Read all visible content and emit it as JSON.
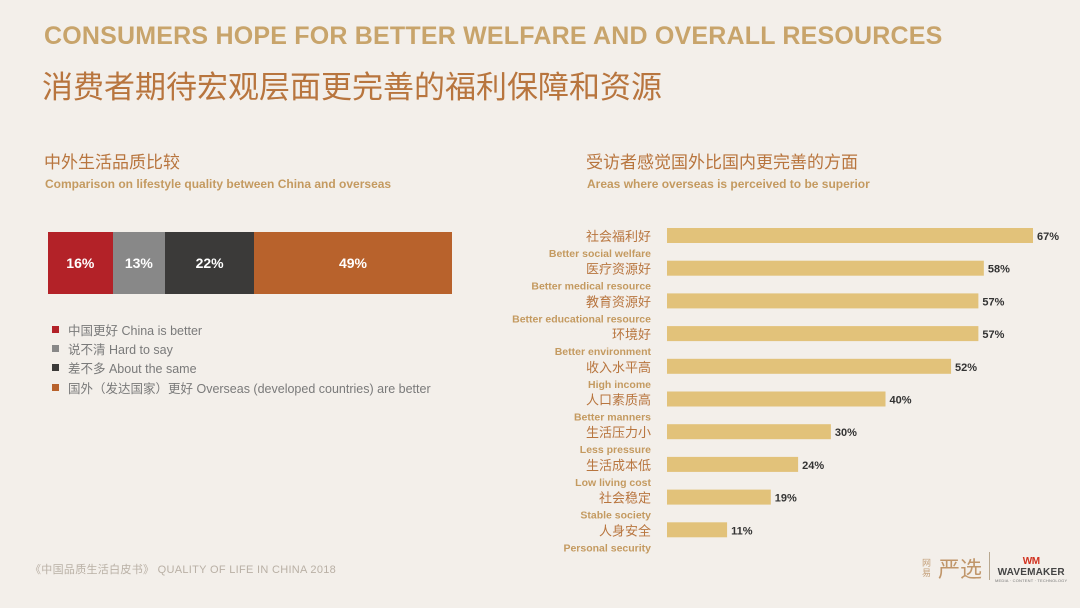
{
  "title_en": "CONSUMERS HOPE FOR BETTER WELFARE AND OVERALL RESOURCES",
  "title_cn": "消费者期待宏观层面更完善的福利保障和资源",
  "left_section": {
    "title_cn": "中外生活品质比较",
    "title_en": "Comparison on lifestyle quality between China and overseas"
  },
  "right_section": {
    "title_cn": "受访者感觉国外比国内更完善的方面",
    "title_en": "Areas where overseas is perceived to be superior"
  },
  "footer": {
    "report": "《中国品质生活白皮书》  QUALITY OF LIFE IN CHINA 2018",
    "logo_small": "网易",
    "logo_big": "严选",
    "wm_mark": "WM",
    "wm_name": "WAVEMAKER",
    "wm_sub": "MEDIA · CONTENT · TECHNOLOGY"
  },
  "chart_data": [
    {
      "type": "bar",
      "orientation": "horizontal-stacked",
      "title": "中外生活品质比较",
      "series": [
        {
          "name": "中国更好 China is better",
          "values": [
            16
          ],
          "label": "16%",
          "color": "#b32228"
        },
        {
          "name": "说不清 Hard to say",
          "values": [
            13
          ],
          "label": "13%",
          "color": "#888888"
        },
        {
          "name": "差不多 About the same",
          "values": [
            22
          ],
          "label": "22%",
          "color": "#3b3a39"
        },
        {
          "name": "国外（发达国家）更好 Overseas (developed countries) are better",
          "values": [
            49
          ],
          "label": "49%",
          "color": "#b8622c"
        }
      ],
      "unit": "%",
      "legend_position": "bottom"
    },
    {
      "type": "bar",
      "orientation": "horizontal",
      "title": "受访者感觉国外比国内更完善的方面",
      "categories_cn": [
        "社会福利好",
        "医疗资源好",
        "教育资源好",
        "环境好",
        "收入水平高",
        "人口素质高",
        "生活压力小",
        "生活成本低",
        "社会稳定",
        "人身安全"
      ],
      "categories_en": [
        "Better social welfare",
        "Better medical resource",
        "Better educational resource",
        "Better environment",
        "High income",
        "Better manners",
        "Less pressure",
        "Low living cost",
        "Stable society",
        "Personal security"
      ],
      "values": [
        67,
        58,
        57,
        57,
        52,
        40,
        30,
        24,
        19,
        11
      ],
      "value_labels": [
        "67%",
        "58%",
        "57%",
        "57%",
        "52%",
        "40%",
        "30%",
        "24%",
        "19%",
        "11%"
      ],
      "unit": "%",
      "bar_color": "#e2c27a"
    }
  ]
}
